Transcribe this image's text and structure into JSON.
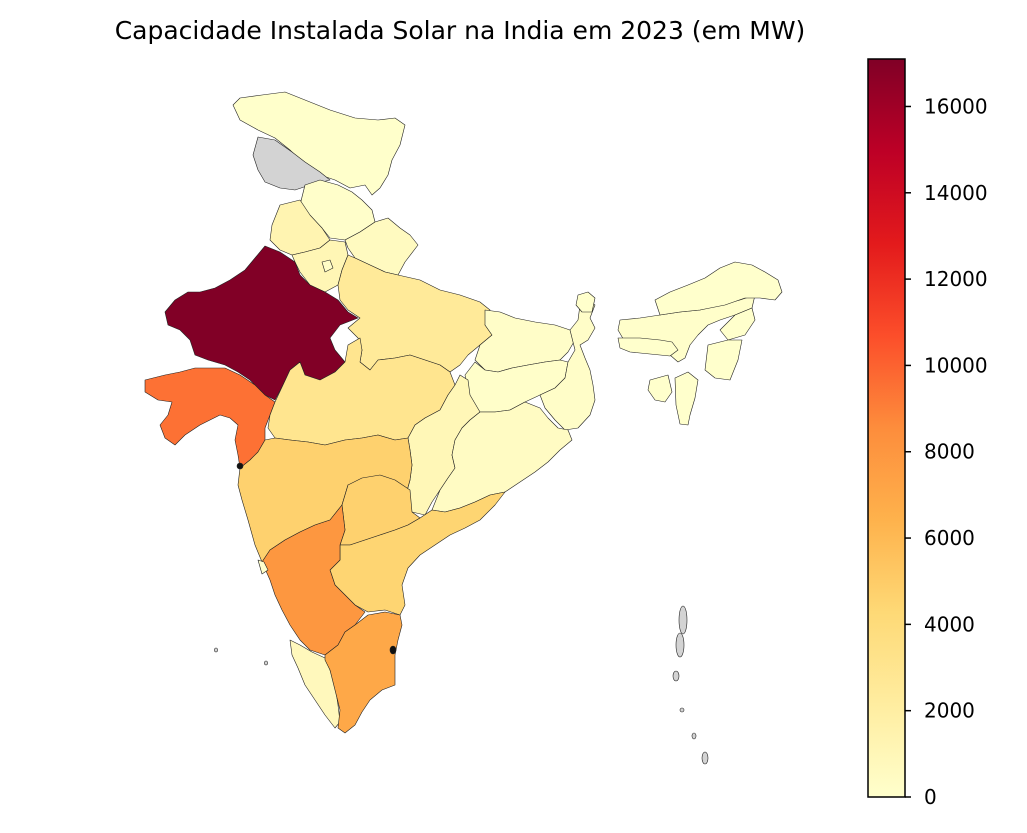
{
  "chart_data": {
    "type": "choropleth",
    "title": "Capacidade Instalada Solar na India em 2023 (em MW)",
    "colormap": "YlOrRd",
    "vmin": 0,
    "vmax": 17100,
    "missing_color": "#d3d3d3",
    "colorbar": {
      "ticks": [
        0,
        2000,
        4000,
        6000,
        8000,
        10000,
        12000,
        14000,
        16000
      ],
      "tick_labels": [
        "0",
        "2000",
        "4000",
        "6000",
        "8000",
        "10000",
        "12000",
        "14000",
        "16000"
      ],
      "stops": [
        "#ffffcc",
        "#ffeda0",
        "#fed976",
        "#feb24c",
        "#fd8d3c",
        "#fc4e2a",
        "#e31a1c",
        "#bd0026",
        "#800026"
      ]
    },
    "regions": [
      {
        "name": "Jammu and Kashmir",
        "value": 50
      },
      {
        "name": "Ladakh",
        "value": null
      },
      {
        "name": "Himachal Pradesh",
        "value": 100
      },
      {
        "name": "Punjab",
        "value": 1300
      },
      {
        "name": "Uttarakhand",
        "value": 580
      },
      {
        "name": "Haryana",
        "value": 1100
      },
      {
        "name": "Delhi",
        "value": 250
      },
      {
        "name": "Rajasthan",
        "value": 17055
      },
      {
        "name": "Uttar Pradesh",
        "value": 2500
      },
      {
        "name": "Gujarat",
        "value": 9500
      },
      {
        "name": "Madhya Pradesh",
        "value": 3000
      },
      {
        "name": "Bihar",
        "value": 200
      },
      {
        "name": "Jharkhand",
        "value": 150
      },
      {
        "name": "West Bengal",
        "value": 180
      },
      {
        "name": "Chhattisgarh",
        "value": 1000
      },
      {
        "name": "Odisha",
        "value": 450
      },
      {
        "name": "Maharashtra",
        "value": 4700
      },
      {
        "name": "Telangana",
        "value": 4700
      },
      {
        "name": "Andhra Pradesh",
        "value": 4500
      },
      {
        "name": "Karnataka",
        "value": 8000
      },
      {
        "name": "Goa",
        "value": 40
      },
      {
        "name": "Kerala",
        "value": 800
      },
      {
        "name": "Tamil Nadu",
        "value": 7000
      },
      {
        "name": "Sikkim",
        "value": 5
      },
      {
        "name": "Assam",
        "value": 100
      },
      {
        "name": "Arunachal Pradesh",
        "value": 10
      },
      {
        "name": "Meghalaya",
        "value": 5
      },
      {
        "name": "Nagaland",
        "value": 3
      },
      {
        "name": "Manipur",
        "value": 13
      },
      {
        "name": "Mizoram",
        "value": 10
      },
      {
        "name": "Tripura",
        "value": 18
      },
      {
        "name": "Andaman and Nicobar Islands",
        "value": null
      },
      {
        "name": "Lakshadweep",
        "value": null
      },
      {
        "name": "Puducherry",
        "value": null
      }
    ]
  }
}
